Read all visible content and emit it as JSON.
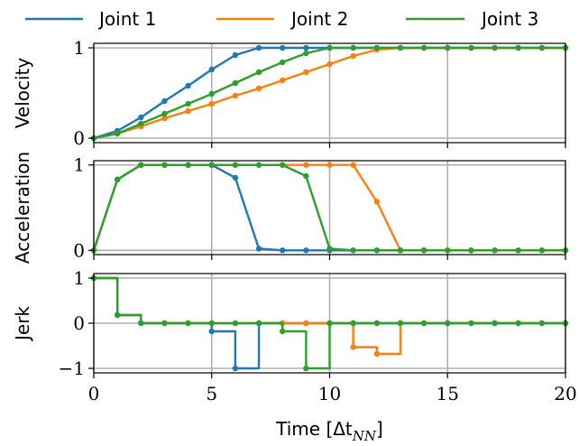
{
  "chart_data": {
    "type": "line",
    "legend": {
      "placement": "top",
      "entries": [
        "Joint 1",
        "Joint 2",
        "Joint 3"
      ]
    },
    "series_styles": [
      {
        "name": "Joint 1",
        "color": "#1f77b4"
      },
      {
        "name": "Joint 2",
        "color": "#ff7f0e"
      },
      {
        "name": "Joint 3",
        "color": "#2ca02c"
      }
    ],
    "xlabel": "Time [Δt",
    "xlabel_sub": "NN",
    "xlabel_end": "]",
    "xlim": [
      0,
      20
    ],
    "xticks": [
      0,
      5,
      10,
      15,
      20
    ],
    "xtick_labels": [
      "0",
      "5",
      "10",
      "15",
      "20"
    ],
    "grid": true,
    "panels": [
      {
        "ylabel": "Velocity",
        "ylim": [
          -0.05,
          1.05
        ],
        "yticks": [
          0,
          1
        ],
        "ytick_labels": [
          "0",
          "1"
        ],
        "series": [
          {
            "name": "Joint 1",
            "x": [
              0,
              1,
              2,
              3,
              4,
              5,
              6,
              7,
              8,
              9,
              10,
              11,
              12,
              13,
              14,
              15,
              16,
              17,
              18,
              19,
              20
            ],
            "y": [
              0,
              0.08,
              0.23,
              0.41,
              0.58,
              0.76,
              0.92,
              1,
              1,
              1,
              1,
              1,
              1,
              1,
              1,
              1,
              1,
              1,
              1,
              1,
              1
            ]
          },
          {
            "name": "Joint 2",
            "x": [
              0,
              1,
              2,
              3,
              4,
              5,
              6,
              7,
              8,
              9,
              10,
              11,
              12,
              13,
              14,
              15,
              16,
              17,
              18,
              19,
              20
            ],
            "y": [
              0,
              0.05,
              0.13,
              0.22,
              0.3,
              0.38,
              0.47,
              0.55,
              0.64,
              0.73,
              0.82,
              0.91,
              0.98,
              1,
              1,
              1,
              1,
              1,
              1,
              1,
              1
            ]
          },
          {
            "name": "Joint 3",
            "x": [
              0,
              1,
              2,
              3,
              4,
              5,
              6,
              7,
              8,
              9,
              10,
              11,
              12,
              13,
              14,
              15,
              16,
              17,
              18,
              19,
              20
            ],
            "y": [
              0,
              0.05,
              0.16,
              0.27,
              0.38,
              0.49,
              0.61,
              0.73,
              0.84,
              0.94,
              1,
              1,
              1,
              1,
              1,
              1,
              1,
              1,
              1,
              1,
              1
            ]
          }
        ]
      },
      {
        "ylabel": "Acceleration",
        "ylim": [
          -0.05,
          1.05
        ],
        "yticks": [
          0,
          1
        ],
        "ytick_labels": [
          "0",
          "1"
        ],
        "series": [
          {
            "name": "Joint 1",
            "x": [
              0,
              1,
              2,
              3,
              4,
              5,
              6,
              7,
              8,
              9,
              10,
              11,
              12,
              13,
              14,
              15,
              16,
              17,
              18,
              19,
              20
            ],
            "y": [
              0,
              0.83,
              1,
              1,
              1,
              1,
              0.85,
              0.02,
              0,
              0,
              0,
              0,
              0,
              0,
              0,
              0,
              0,
              0,
              0,
              0,
              0
            ]
          },
          {
            "name": "Joint 2",
            "x": [
              0,
              1,
              2,
              3,
              4,
              5,
              6,
              7,
              8,
              9,
              10,
              11,
              12,
              13,
              14,
              15,
              16,
              17,
              18,
              19,
              20
            ],
            "y": [
              0,
              0.83,
              1,
              1,
              1,
              1,
              1,
              1,
              1,
              1,
              1,
              1,
              0.57,
              0,
              0,
              0,
              0,
              0,
              0,
              0,
              0
            ]
          },
          {
            "name": "Joint 3",
            "x": [
              0,
              1,
              2,
              3,
              4,
              5,
              6,
              7,
              8,
              9,
              10,
              11,
              12,
              13,
              14,
              15,
              16,
              17,
              18,
              19,
              20
            ],
            "y": [
              0,
              0.83,
              1,
              1,
              1,
              1,
              1,
              1,
              1,
              0.87,
              0.02,
              0,
              0,
              0,
              0,
              0,
              0,
              0,
              0,
              0,
              0
            ]
          }
        ]
      },
      {
        "ylabel": "Jerk",
        "ylim": [
          -1.1,
          1.1
        ],
        "yticks": [
          -1,
          0,
          1
        ],
        "ytick_labels": [
          "−1",
          "0",
          "1"
        ],
        "step": true,
        "series": [
          {
            "name": "Joint 1",
            "x": [
              0,
              1,
              2,
              3,
              4,
              5,
              6,
              7,
              8,
              9,
              10,
              11,
              12,
              13,
              14,
              15,
              16,
              17,
              18,
              19,
              20
            ],
            "y": [
              1,
              0.18,
              0,
              0,
              0,
              -0.18,
              -1,
              0,
              0,
              0,
              0,
              0,
              0,
              0,
              0,
              0,
              0,
              0,
              0,
              0,
              0
            ]
          },
          {
            "name": "Joint 2",
            "x": [
              0,
              1,
              2,
              3,
              4,
              5,
              6,
              7,
              8,
              9,
              10,
              11,
              12,
              13,
              14,
              15,
              16,
              17,
              18,
              19,
              20
            ],
            "y": [
              1,
              0.18,
              0,
              0,
              0,
              0,
              0,
              0,
              0,
              0,
              0,
              -0.53,
              -0.68,
              0,
              0,
              0,
              0,
              0,
              0,
              0,
              0
            ]
          },
          {
            "name": "Joint 3",
            "x": [
              0,
              1,
              2,
              3,
              4,
              5,
              6,
              7,
              8,
              9,
              10,
              11,
              12,
              13,
              14,
              15,
              16,
              17,
              18,
              19,
              20
            ],
            "y": [
              1,
              0.18,
              0,
              0,
              0,
              0,
              0,
              0,
              -0.18,
              -1,
              0,
              0,
              0,
              0,
              0,
              0,
              0,
              0,
              0,
              0,
              0
            ]
          }
        ]
      }
    ]
  }
}
